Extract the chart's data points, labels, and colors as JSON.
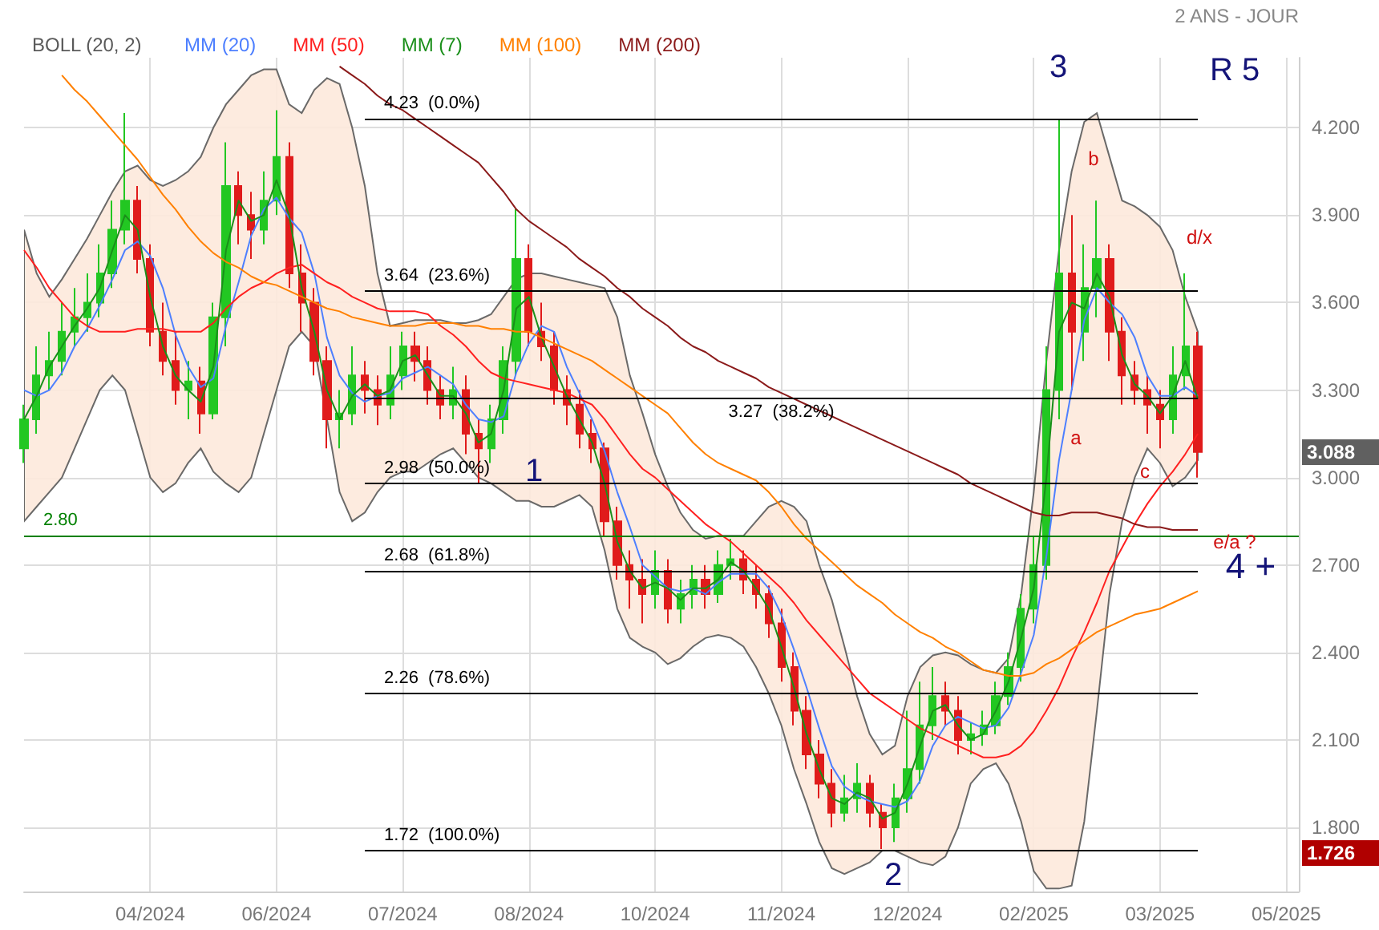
{
  "chart_data": {
    "type": "candlestick",
    "categories": [
      null,
      null,
      null,
      null,
      null,
      null,
      null,
      null,
      null,
      null,
      "04/2024",
      null,
      null,
      null,
      null,
      null,
      null,
      null,
      null,
      null,
      "06/2024",
      null,
      null,
      null,
      null,
      null,
      null,
      null,
      null,
      null,
      "07/2024",
      null,
      null,
      null,
      null,
      null,
      null,
      null,
      null,
      null,
      "08/2024",
      null,
      null,
      null,
      null,
      null,
      null,
      null,
      null,
      null,
      "10/2024",
      null,
      null,
      null,
      null,
      null,
      null,
      null,
      null,
      null,
      "11/2024",
      null,
      null,
      null,
      null,
      null,
      null,
      null,
      null,
      null,
      "12/2024",
      null,
      null,
      null,
      null,
      null,
      null,
      null,
      null,
      null,
      "02/2025",
      null,
      null,
      null,
      null,
      null,
      null,
      null,
      null,
      null,
      "03/2025",
      null,
      null,
      null,
      null,
      null,
      null,
      null,
      null,
      null,
      "05/2025",
      null
    ],
    "series": [
      {
        "type": "candlestick",
        "ohlc": [
          [
            3.1,
            3.25,
            3.05,
            3.2
          ],
          [
            3.2,
            3.45,
            3.15,
            3.35
          ],
          [
            3.35,
            3.5,
            3.3,
            3.4
          ],
          [
            3.4,
            3.6,
            3.35,
            3.5
          ],
          [
            3.5,
            3.65,
            3.45,
            3.55
          ],
          [
            3.55,
            3.7,
            3.5,
            3.6
          ],
          [
            3.6,
            3.8,
            3.55,
            3.7
          ],
          [
            3.7,
            3.95,
            3.65,
            3.85
          ],
          [
            3.85,
            4.25,
            3.8,
            3.95
          ],
          [
            3.95,
            4.0,
            3.7,
            3.75
          ],
          [
            3.75,
            3.8,
            3.45,
            3.5
          ],
          [
            3.5,
            3.6,
            3.35,
            3.4
          ],
          [
            3.4,
            3.5,
            3.25,
            3.3
          ],
          [
            3.3,
            3.4,
            3.2,
            3.33
          ],
          [
            3.33,
            3.38,
            3.15,
            3.22
          ],
          [
            3.22,
            3.6,
            3.2,
            3.55
          ],
          [
            3.55,
            4.15,
            3.45,
            4.0
          ],
          [
            4.0,
            4.05,
            3.8,
            3.9
          ],
          [
            3.9,
            3.98,
            3.75,
            3.85
          ],
          [
            3.85,
            4.05,
            3.8,
            3.95
          ],
          [
            3.95,
            4.26,
            3.9,
            4.1
          ],
          [
            4.1,
            4.15,
            3.65,
            3.7
          ],
          [
            3.7,
            3.8,
            3.5,
            3.6
          ],
          [
            3.6,
            3.65,
            3.35,
            3.4
          ],
          [
            3.4,
            3.45,
            3.1,
            3.2
          ],
          [
            3.2,
            3.3,
            3.1,
            3.22
          ],
          [
            3.22,
            3.45,
            3.18,
            3.35
          ],
          [
            3.35,
            3.4,
            3.22,
            3.3
          ],
          [
            3.3,
            3.35,
            3.18,
            3.25
          ],
          [
            3.25,
            3.45,
            3.2,
            3.35
          ],
          [
            3.35,
            3.5,
            3.3,
            3.45
          ],
          [
            3.45,
            3.5,
            3.33,
            3.4
          ],
          [
            3.4,
            3.45,
            3.25,
            3.3
          ],
          [
            3.3,
            3.35,
            3.2,
            3.25
          ],
          [
            3.25,
            3.38,
            3.2,
            3.3
          ],
          [
            3.3,
            3.35,
            3.08,
            3.15
          ],
          [
            3.15,
            3.2,
            2.98,
            3.1
          ],
          [
            3.1,
            3.25,
            3.05,
            3.2
          ],
          [
            3.2,
            3.45,
            3.15,
            3.4
          ],
          [
            3.4,
            3.92,
            3.35,
            3.75
          ],
          [
            3.75,
            3.8,
            3.45,
            3.5
          ],
          [
            3.5,
            3.6,
            3.4,
            3.45
          ],
          [
            3.45,
            3.5,
            3.25,
            3.3
          ],
          [
            3.3,
            3.35,
            3.18,
            3.25
          ],
          [
            3.25,
            3.3,
            3.1,
            3.15
          ],
          [
            3.15,
            3.2,
            3.05,
            3.1
          ],
          [
            3.1,
            3.12,
            2.8,
            2.85
          ],
          [
            2.85,
            2.9,
            2.65,
            2.7
          ],
          [
            2.7,
            2.75,
            2.55,
            2.65
          ],
          [
            2.65,
            2.72,
            2.5,
            2.6
          ],
          [
            2.6,
            2.75,
            2.55,
            2.68
          ],
          [
            2.68,
            2.72,
            2.5,
            2.55
          ],
          [
            2.55,
            2.65,
            2.5,
            2.6
          ],
          [
            2.6,
            2.7,
            2.55,
            2.65
          ],
          [
            2.65,
            2.7,
            2.55,
            2.6
          ],
          [
            2.6,
            2.75,
            2.57,
            2.7
          ],
          [
            2.7,
            2.79,
            2.65,
            2.72
          ],
          [
            2.72,
            2.75,
            2.6,
            2.65
          ],
          [
            2.65,
            2.7,
            2.55,
            2.6
          ],
          [
            2.6,
            2.63,
            2.45,
            2.5
          ],
          [
            2.5,
            2.55,
            2.3,
            2.35
          ],
          [
            2.35,
            2.4,
            2.15,
            2.2
          ],
          [
            2.2,
            2.25,
            2.0,
            2.05
          ],
          [
            2.05,
            2.1,
            1.9,
            1.95
          ],
          [
            1.95,
            2.0,
            1.8,
            1.85
          ],
          [
            1.85,
            1.98,
            1.82,
            1.9
          ],
          [
            1.9,
            2.02,
            1.85,
            1.95
          ],
          [
            1.95,
            1.98,
            1.8,
            1.85
          ],
          [
            1.85,
            1.88,
            1.726,
            1.8
          ],
          [
            1.8,
            1.95,
            1.75,
            1.9
          ],
          [
            1.9,
            2.2,
            1.85,
            2.0
          ],
          [
            2.0,
            2.3,
            1.95,
            2.15
          ],
          [
            2.15,
            2.35,
            2.1,
            2.25
          ],
          [
            2.25,
            2.3,
            2.15,
            2.2
          ],
          [
            2.2,
            2.25,
            2.05,
            2.1
          ],
          [
            2.1,
            2.16,
            2.05,
            2.12
          ],
          [
            2.12,
            2.2,
            2.08,
            2.15
          ],
          [
            2.15,
            2.3,
            2.12,
            2.25
          ],
          [
            2.25,
            2.4,
            2.22,
            2.35
          ],
          [
            2.35,
            2.6,
            2.3,
            2.55
          ],
          [
            2.55,
            2.8,
            2.5,
            2.7
          ],
          [
            2.7,
            3.45,
            2.65,
            3.3
          ],
          [
            3.3,
            4.23,
            3.2,
            3.7
          ],
          [
            3.7,
            3.9,
            3.3,
            3.5
          ],
          [
            3.5,
            3.8,
            3.4,
            3.65
          ],
          [
            3.65,
            3.95,
            3.55,
            3.75
          ],
          [
            3.75,
            3.8,
            3.4,
            3.5
          ],
          [
            3.5,
            3.55,
            3.25,
            3.35
          ],
          [
            3.35,
            3.4,
            3.25,
            3.3
          ],
          [
            3.3,
            3.35,
            3.15,
            3.25
          ],
          [
            3.25,
            3.3,
            3.1,
            3.2
          ],
          [
            3.2,
            3.45,
            3.15,
            3.35
          ],
          [
            3.35,
            3.7,
            3.3,
            3.45
          ],
          [
            3.45,
            3.5,
            3.0,
            3.088
          ],
          null,
          null,
          null,
          null,
          null,
          null,
          null,
          null
        ],
        "colors": [
          "#22c722",
          "#22c722",
          "#22c722",
          "#22c722",
          "#22c722",
          "#22c722",
          "#22c722",
          "#22c722",
          "#22c722",
          "#e01b1b",
          "#e01b1b",
          "#e01b1b",
          "#e01b1b",
          "#22c722",
          "#e01b1b",
          "#22c722",
          "#22c722",
          "#e01b1b",
          "#e01b1b",
          "#22c722",
          "#22c722",
          "#e01b1b",
          "#e01b1b",
          "#e01b1b",
          "#e01b1b",
          "#22c722",
          "#22c722",
          "#e01b1b",
          "#e01b1b",
          "#22c722",
          "#22c722",
          "#e01b1b",
          "#e01b1b",
          "#e01b1b",
          "#22c722",
          "#e01b1b",
          "#e01b1b",
          "#22c722",
          "#22c722",
          "#22c722",
          "#e01b1b",
          "#e01b1b",
          "#e01b1b",
          "#e01b1b",
          "#e01b1b",
          "#e01b1b",
          "#e01b1b",
          "#e01b1b",
          "#e01b1b",
          "#e01b1b",
          "#22c722",
          "#e01b1b",
          "#22c722",
          "#22c722",
          "#e01b1b",
          "#22c722",
          "#22c722",
          "#e01b1b",
          "#e01b1b",
          "#e01b1b",
          "#e01b1b",
          "#e01b1b",
          "#e01b1b",
          "#e01b1b",
          "#e01b1b",
          "#22c722",
          "#22c722",
          "#e01b1b",
          "#e01b1b",
          "#22c722",
          "#22c722",
          "#22c722",
          "#22c722",
          "#e01b1b",
          "#e01b1b",
          "#22c722",
          "#22c722",
          "#22c722",
          "#22c722",
          "#22c722",
          "#22c722",
          "#22c722",
          "#22c722",
          "#e01b1b",
          "#22c722",
          "#22c722",
          "#e01b1b",
          "#e01b1b",
          "#e01b1b",
          "#e01b1b",
          "#e01b1b",
          "#22c722",
          "#22c722",
          "#e01b1b",
          null,
          null,
          null,
          null,
          null,
          null,
          null,
          null
        ]
      },
      {
        "name": "MM (20)",
        "type": "line",
        "color": "#4d7fff",
        "values": [
          3.3,
          3.28,
          3.3,
          3.36,
          3.45,
          3.51,
          3.59,
          3.68,
          3.78,
          3.81,
          3.76,
          3.65,
          3.49,
          3.38,
          3.31,
          3.34,
          3.52,
          3.67,
          3.83,
          3.92,
          3.96,
          3.89,
          3.84,
          3.7,
          3.48,
          3.35,
          3.29,
          3.26,
          3.28,
          3.29,
          3.34,
          3.36,
          3.38,
          3.35,
          3.32,
          3.25,
          3.2,
          3.19,
          3.21,
          3.36,
          3.46,
          3.52,
          3.5,
          3.38,
          3.29,
          3.2,
          3.09,
          2.95,
          2.83,
          2.7,
          2.66,
          2.62,
          2.61,
          2.62,
          2.6,
          2.64,
          2.67,
          2.67,
          2.67,
          2.62,
          2.53,
          2.41,
          2.28,
          2.14,
          2.01,
          1.94,
          1.91,
          1.89,
          1.88,
          1.87,
          1.89,
          1.96,
          2.08,
          2.15,
          2.18,
          2.16,
          2.14,
          2.15,
          2.21,
          2.33,
          2.46,
          2.73,
          3.06,
          3.3,
          3.54,
          3.65,
          3.6,
          3.56,
          3.48,
          3.35,
          3.28,
          3.28,
          3.31,
          3.28,
          null,
          null,
          null,
          null,
          null,
          null,
          null,
          null
        ],
        "upper": [
          3.85,
          3.7,
          3.62,
          3.68,
          3.75,
          3.82,
          3.9,
          3.98,
          4.05,
          4.07,
          4.02,
          4.0,
          4.02,
          4.05,
          4.1,
          4.2,
          4.28,
          4.33,
          4.38,
          4.4,
          4.4,
          4.28,
          4.25,
          4.33,
          4.37,
          4.35,
          4.2,
          4.0,
          3.7,
          3.52,
          3.53,
          3.54,
          3.54,
          3.54,
          3.53,
          3.53,
          3.54,
          3.56,
          3.62,
          3.68,
          3.7,
          3.7,
          3.69,
          3.68,
          3.67,
          3.66,
          3.65,
          3.55,
          3.35,
          3.22,
          3.08,
          2.97,
          2.88,
          2.82,
          2.79,
          2.8,
          2.8,
          2.8,
          2.85,
          2.9,
          2.92,
          2.9,
          2.85,
          2.7,
          2.58,
          2.42,
          2.25,
          2.12,
          2.05,
          2.08,
          2.25,
          2.35,
          2.39,
          2.4,
          2.39,
          2.36,
          2.34,
          2.33,
          2.38,
          2.6,
          2.95,
          3.4,
          3.78,
          4.05,
          4.22,
          4.25,
          4.1,
          3.95,
          3.93,
          3.9,
          3.86,
          3.78,
          3.62,
          3.5,
          null,
          null,
          null,
          null,
          null,
          null,
          null,
          null
        ],
        "lower": [
          2.85,
          2.9,
          2.95,
          3.0,
          3.1,
          3.2,
          3.3,
          3.35,
          3.3,
          3.15,
          3.0,
          2.95,
          2.98,
          3.05,
          3.1,
          3.02,
          2.98,
          2.95,
          3.0,
          3.15,
          3.3,
          3.45,
          3.5,
          3.45,
          3.2,
          2.95,
          2.85,
          2.88,
          2.95,
          3.0,
          3.02,
          3.02,
          3.05,
          3.08,
          3.1,
          3.05,
          3.0,
          2.98,
          2.95,
          2.92,
          2.92,
          2.9,
          2.9,
          2.92,
          2.94,
          2.9,
          2.75,
          2.55,
          2.45,
          2.42,
          2.4,
          2.36,
          2.38,
          2.42,
          2.45,
          2.46,
          2.45,
          2.42,
          2.35,
          2.26,
          2.15,
          2.0,
          1.88,
          1.75,
          1.66,
          1.64,
          1.66,
          1.68,
          1.72,
          1.72,
          1.7,
          1.68,
          1.67,
          1.7,
          1.8,
          1.95,
          2.0,
          2.02,
          1.95,
          1.82,
          1.65,
          1.59,
          1.59,
          1.6,
          1.82,
          2.2,
          2.6,
          2.85,
          3.0,
          3.1,
          3.05,
          2.97,
          3.0,
          3.06,
          null,
          null,
          null,
          null,
          null,
          null,
          null,
          null
        ]
      },
      {
        "name": "MM (50)",
        "type": "line",
        "color": "#ff2020",
        "values": [
          3.78,
          3.72,
          3.65,
          3.6,
          3.55,
          3.52,
          3.5,
          3.5,
          3.5,
          3.51,
          3.51,
          3.51,
          3.5,
          3.5,
          3.5,
          3.53,
          3.58,
          3.62,
          3.65,
          3.67,
          3.7,
          3.72,
          3.73,
          3.7,
          3.67,
          3.65,
          3.62,
          3.6,
          3.58,
          3.57,
          3.57,
          3.57,
          3.56,
          3.52,
          3.49,
          3.45,
          3.4,
          3.36,
          3.34,
          3.33,
          3.32,
          3.31,
          3.3,
          3.29,
          3.27,
          3.25,
          3.2,
          3.14,
          3.08,
          3.03,
          3.0,
          2.96,
          2.92,
          2.88,
          2.84,
          2.81,
          2.78,
          2.74,
          2.7,
          2.66,
          2.62,
          2.57,
          2.51,
          2.46,
          2.41,
          2.36,
          2.31,
          2.26,
          2.23,
          2.2,
          2.17,
          2.14,
          2.12,
          2.1,
          2.08,
          2.06,
          2.04,
          2.04,
          2.05,
          2.08,
          2.13,
          2.2,
          2.28,
          2.38,
          2.47,
          2.57,
          2.68,
          2.76,
          2.84,
          2.91,
          2.97,
          3.02,
          3.08,
          3.15,
          null,
          null,
          null,
          null,
          null,
          null,
          null,
          null
        ]
      },
      {
        "name": "MM (7)",
        "type": "line",
        "color": "#1a8f1a",
        "values": [
          3.2,
          3.28,
          3.38,
          3.45,
          3.52,
          3.58,
          3.65,
          3.78,
          3.9,
          3.85,
          3.62,
          3.45,
          3.35,
          3.3,
          3.26,
          3.38,
          3.78,
          3.95,
          3.88,
          3.9,
          4.02,
          3.9,
          3.65,
          3.5,
          3.3,
          3.2,
          3.28,
          3.32,
          3.28,
          3.3,
          3.4,
          3.42,
          3.35,
          3.28,
          3.28,
          3.22,
          3.12,
          3.15,
          3.3,
          3.58,
          3.62,
          3.48,
          3.38,
          3.28,
          3.2,
          3.12,
          2.98,
          2.78,
          2.68,
          2.62,
          2.64,
          2.62,
          2.58,
          2.62,
          2.62,
          2.65,
          2.71,
          2.68,
          2.62,
          2.55,
          2.42,
          2.28,
          2.12,
          2.0,
          1.9,
          1.88,
          1.92,
          1.9,
          1.83,
          1.85,
          1.95,
          2.08,
          2.2,
          2.22,
          2.15,
          2.1,
          2.12,
          2.2,
          2.3,
          2.45,
          2.62,
          3.0,
          3.5,
          3.6,
          3.58,
          3.7,
          3.62,
          3.42,
          3.32,
          3.28,
          3.22,
          3.28,
          3.4,
          3.27,
          null,
          null,
          null,
          null,
          null,
          null,
          null,
          null
        ]
      },
      {
        "name": "MM (100)",
        "type": "line",
        "color": "#ff8000",
        "values": [
          null,
          null,
          null,
          4.38,
          4.33,
          4.29,
          4.24,
          4.19,
          4.14,
          4.09,
          4.03,
          3.97,
          3.92,
          3.86,
          3.81,
          3.77,
          3.74,
          3.72,
          3.69,
          3.67,
          3.66,
          3.64,
          3.62,
          3.6,
          3.58,
          3.57,
          3.55,
          3.54,
          3.53,
          3.52,
          3.52,
          3.52,
          3.53,
          3.53,
          3.53,
          3.52,
          3.52,
          3.51,
          3.51,
          3.5,
          3.5,
          3.48,
          3.46,
          3.44,
          3.42,
          3.4,
          3.37,
          3.34,
          3.31,
          3.28,
          3.25,
          3.22,
          3.17,
          3.12,
          3.08,
          3.05,
          3.03,
          3.01,
          2.99,
          2.95,
          2.9,
          2.84,
          2.79,
          2.75,
          2.71,
          2.67,
          2.63,
          2.6,
          2.57,
          2.53,
          2.5,
          2.47,
          2.45,
          2.42,
          2.4,
          2.37,
          2.34,
          2.33,
          2.32,
          2.32,
          2.33,
          2.36,
          2.38,
          2.41,
          2.44,
          2.47,
          2.49,
          2.51,
          2.53,
          2.54,
          2.55,
          2.57,
          2.59,
          2.61,
          null,
          null,
          null,
          null,
          null,
          null,
          null,
          null
        ]
      },
      {
        "name": "MM (200)",
        "type": "line",
        "color": "#8b1a1a",
        "values": [
          null,
          null,
          null,
          null,
          null,
          null,
          null,
          null,
          null,
          null,
          null,
          null,
          null,
          null,
          null,
          null,
          null,
          null,
          null,
          null,
          null,
          null,
          null,
          null,
          null,
          4.41,
          4.38,
          4.35,
          4.31,
          4.28,
          4.26,
          4.23,
          4.2,
          4.17,
          4.14,
          4.11,
          4.08,
          4.03,
          3.98,
          3.92,
          3.88,
          3.85,
          3.82,
          3.79,
          3.75,
          3.72,
          3.69,
          3.65,
          3.62,
          3.58,
          3.55,
          3.52,
          3.48,
          3.45,
          3.43,
          3.4,
          3.38,
          3.36,
          3.34,
          3.31,
          3.29,
          3.27,
          3.25,
          3.23,
          3.21,
          3.19,
          3.17,
          3.15,
          3.13,
          3.11,
          3.09,
          3.07,
          3.05,
          3.03,
          3.01,
          2.98,
          2.96,
          2.94,
          2.92,
          2.9,
          2.88,
          2.87,
          2.87,
          2.88,
          2.88,
          2.88,
          2.87,
          2.86,
          2.84,
          2.83,
          2.83,
          2.82,
          2.82,
          2.82,
          null,
          null,
          null,
          null,
          null,
          null,
          null,
          null
        ]
      }
    ],
    "ylim": [
      1.58,
      4.44
    ],
    "yticks": [
      {
        "value": 1.8,
        "label": "1.800"
      },
      {
        "value": 2.1,
        "label": "2.100"
      },
      {
        "value": 2.4,
        "label": "2.400"
      },
      {
        "value": 2.7,
        "label": "2.700"
      },
      {
        "value": 3.0,
        "label": "3.000"
      },
      {
        "value": 3.3,
        "label": "3.300"
      },
      {
        "value": 3.6,
        "label": "3.600"
      },
      {
        "value": 3.9,
        "label": "3.900"
      },
      {
        "value": 4.2,
        "label": "4.200"
      }
    ],
    "ref_lines": [
      {
        "axis": "y",
        "value": 2.8,
        "label": "2.80",
        "color": "#008000"
      },
      {
        "axis": "y",
        "value": 4.23,
        "label": "4.23  (0.0%)",
        "color": "#000000"
      },
      {
        "axis": "y",
        "value": 3.64,
        "label": "3.64  (23.6%)",
        "color": "#000000"
      },
      {
        "axis": "y",
        "value": 3.27,
        "label": "3.27  (38.2%)",
        "color": "#000000"
      },
      {
        "axis": "y",
        "value": 2.98,
        "label": "2.98  (50.0%)",
        "color": "#000000"
      },
      {
        "axis": "y",
        "value": 2.68,
        "label": "2.68  (61.8%)",
        "color": "#000000"
      },
      {
        "axis": "y",
        "value": 2.26,
        "label": "2.26  (78.6%)",
        "color": "#000000"
      },
      {
        "axis": "y",
        "value": 1.72,
        "label": "1.72  (100.0%)",
        "color": "#000000"
      }
    ],
    "annotations": [
      "BOLL (20, 2)",
      "2 ANS - JOUR",
      "1",
      "2",
      "3",
      "R 5",
      "4 +",
      "a",
      "b",
      "c",
      "d/x",
      "e/a ?",
      "3.088",
      "1.726"
    ],
    "grid": true,
    "legend": "top left",
    "marker": "none",
    "line_style": "solid"
  }
}
